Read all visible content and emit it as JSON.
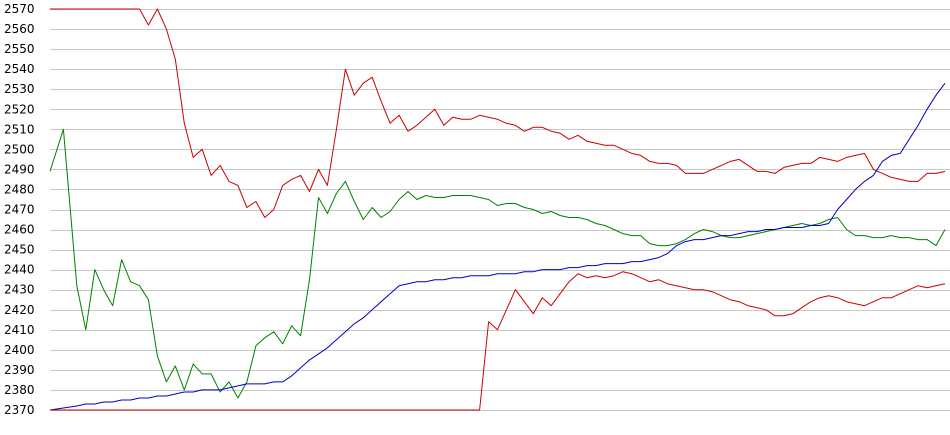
{
  "chart_data": {
    "type": "line",
    "title": "",
    "xlabel": "",
    "ylabel": "",
    "ylim": [
      2370,
      2570
    ],
    "yticks": [
      2370,
      2380,
      2390,
      2400,
      2410,
      2420,
      2430,
      2440,
      2450,
      2460,
      2470,
      2480,
      2490,
      2500,
      2510,
      2520,
      2530,
      2540,
      2550,
      2560,
      2570
    ],
    "grid": true,
    "legend": "none",
    "x": [
      0,
      3,
      6,
      8,
      10,
      12,
      14,
      16,
      18,
      20,
      22,
      24,
      26,
      28,
      30,
      32,
      34,
      36,
      38,
      40,
      42,
      44,
      46,
      48,
      50,
      52,
      54,
      56,
      58,
      60,
      62,
      64,
      66,
      68,
      70,
      72,
      74,
      76,
      78,
      80,
      82,
      84,
      86,
      88,
      90,
      92,
      94,
      96,
      98,
      100,
      102,
      104,
      106,
      108,
      110,
      112,
      114,
      116,
      118,
      120,
      122,
      124,
      126,
      128,
      130,
      132,
      134,
      136,
      138,
      140,
      142,
      144,
      146,
      148,
      150,
      152,
      154,
      156,
      158,
      160,
      162,
      164,
      166,
      168,
      170,
      172,
      174,
      176,
      178,
      180,
      182,
      184,
      186,
      188,
      190,
      192,
      194,
      196,
      198,
      200
    ],
    "series": [
      {
        "color": "#cc0000",
        "values": [
          2570,
          2570,
          2570,
          2570,
          2570,
          2570,
          2570,
          2570,
          2570,
          2570,
          2562,
          2570,
          2560,
          2545,
          2513,
          2496,
          2500,
          2487,
          2492,
          2484,
          2482,
          2471,
          2474,
          2466,
          2470,
          2482,
          2485,
          2487,
          2479,
          2490,
          2482,
          2510,
          2540,
          2527,
          2533,
          2536,
          2524,
          2513,
          2517,
          2509,
          2512,
          2516,
          2520,
          2512,
          2516,
          2515,
          2515,
          2517,
          2516,
          2515,
          2513,
          2512,
          2509,
          2511,
          2511,
          2509,
          2508,
          2505,
          2507,
          2504,
          2503,
          2502,
          2502,
          2500,
          2498,
          2497,
          2494,
          2493,
          2493,
          2492,
          2488,
          2488,
          2488,
          2490,
          2492,
          2494,
          2495,
          2492,
          2489,
          2489,
          2488,
          2491,
          2492,
          2493,
          2493,
          2496,
          2495,
          2494,
          2496,
          2497,
          2498,
          2490,
          2488,
          2486,
          2485,
          2484,
          2484,
          2488,
          2488,
          2489
        ]
      },
      {
        "color": "#008000",
        "values": [
          2489,
          2510,
          2432,
          2410,
          2440,
          2430,
          2422,
          2445,
          2434,
          2432,
          2425,
          2397,
          2384,
          2392,
          2380,
          2393,
          2388,
          2388,
          2379,
          2384,
          2376,
          2384,
          2402,
          2406,
          2409,
          2403,
          2412,
          2407,
          2435,
          2476,
          2468,
          2478,
          2484,
          2474,
          2465,
          2471,
          2466,
          2469,
          2475,
          2479,
          2475,
          2477,
          2476,
          2476,
          2477,
          2477,
          2477,
          2476,
          2475,
          2472,
          2473,
          2473,
          2471,
          2470,
          2468,
          2469,
          2467,
          2466,
          2466,
          2465,
          2463,
          2462,
          2460,
          2458,
          2457,
          2457,
          2453,
          2452,
          2452,
          2453,
          2455,
          2458,
          2460,
          2459,
          2457,
          2456,
          2456,
          2457,
          2458,
          2459,
          2460,
          2461,
          2462,
          2463,
          2462,
          2463,
          2465,
          2466,
          2460,
          2457,
          2457,
          2456,
          2456,
          2457,
          2456,
          2456,
          2455,
          2455,
          2452,
          2460
        ]
      },
      {
        "color": "#0000cc",
        "values": [
          2370,
          2371,
          2372,
          2373,
          2373,
          2374,
          2374,
          2375,
          2375,
          2376,
          2376,
          2377,
          2377,
          2378,
          2379,
          2379,
          2380,
          2380,
          2380,
          2381,
          2382,
          2383,
          2383,
          2383,
          2384,
          2384,
          2387,
          2391,
          2395,
          2398,
          2401,
          2405,
          2409,
          2413,
          2416,
          2420,
          2424,
          2428,
          2432,
          2433,
          2434,
          2434,
          2435,
          2435,
          2436,
          2436,
          2437,
          2437,
          2437,
          2438,
          2438,
          2438,
          2439,
          2439,
          2440,
          2440,
          2440,
          2441,
          2441,
          2442,
          2442,
          2443,
          2443,
          2443,
          2444,
          2444,
          2445,
          2446,
          2448,
          2452,
          2454,
          2455,
          2455,
          2456,
          2457,
          2457,
          2458,
          2459,
          2459,
          2460,
          2460,
          2461,
          2461,
          2461,
          2462,
          2462,
          2463,
          2470,
          2475,
          2480,
          2484,
          2487,
          2494,
          2497,
          2498,
          2505,
          2512,
          2520,
          2527,
          2533
        ]
      },
      {
        "color": "#cc0000",
        "values": [
          2370,
          2370,
          2370,
          2370,
          2370,
          2370,
          2370,
          2370,
          2370,
          2370,
          2370,
          2370,
          2370,
          2370,
          2370,
          2370,
          2370,
          2370,
          2370,
          2370,
          2370,
          2370,
          2370,
          2370,
          2370,
          2370,
          2370,
          2370,
          2370,
          2370,
          2370,
          2370,
          2370,
          2370,
          2370,
          2370,
          2370,
          2370,
          2370,
          2370,
          2370,
          2370,
          2370,
          2370,
          2370,
          2370,
          2370,
          2370,
          2414,
          2410,
          2420,
          2430,
          2424,
          2418,
          2426,
          2422,
          2428,
          2434,
          2438,
          2436,
          2437,
          2436,
          2437,
          2439,
          2438,
          2436,
          2434,
          2435,
          2433,
          2432,
          2431,
          2430,
          2430,
          2429,
          2427,
          2425,
          2424,
          2422,
          2421,
          2420,
          2417,
          2417,
          2418,
          2421,
          2424,
          2426,
          2427,
          2426,
          2424,
          2423,
          2422,
          2424,
          2426,
          2426,
          2428,
          2430,
          2432,
          2431,
          2432,
          2433
        ]
      }
    ]
  }
}
